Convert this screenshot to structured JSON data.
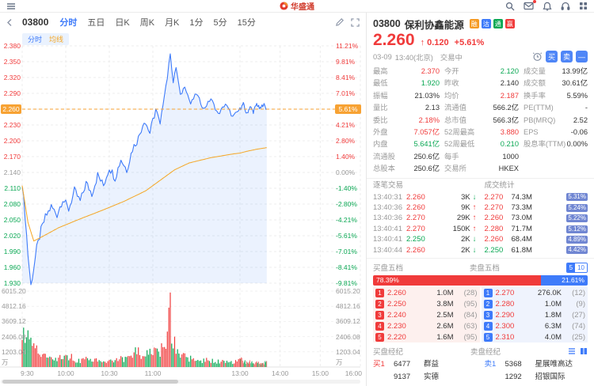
{
  "topbar": {
    "logo": "华盛通"
  },
  "chart_panel": {
    "code": "03800",
    "tabs": [
      "分时",
      "五日",
      "日K",
      "周K",
      "月K",
      "1分",
      "5分",
      "15分"
    ],
    "active_tab": 0,
    "legend": [
      "分时",
      "均线"
    ],
    "price_axis": [
      "2.380",
      "2.350",
      "2.320",
      "2.290",
      "2.260",
      "2.230",
      "2.200",
      "2.170",
      "2.140",
      "2.110",
      "2.080",
      "2.050",
      "2.020",
      "1.990",
      "1.960",
      "1.930"
    ],
    "pct_axis": [
      "11.21%",
      "9.81%",
      "8.41%",
      "7.01%",
      "5.61%",
      "4.21%",
      "2.80%",
      "1.40%",
      "0.00%",
      "-1.40%",
      "-2.80%",
      "-4.21%",
      "-5.61%",
      "-7.01%",
      "-8.41%",
      "-9.81%"
    ],
    "prev_close_index": 8,
    "current_price_chip": "2.260",
    "current_pct_chip": "5.61%",
    "volume_axis": [
      "6015.20",
      "4812.16",
      "3609.12",
      "2406.08",
      "1203.04"
    ],
    "volume_unit": "万",
    "time_axis": [
      "9:30",
      "10:00",
      "10:30",
      "11:00",
      "13:00",
      "14:00",
      "15:00",
      "16:00"
    ]
  },
  "chart_data": {
    "type": "line",
    "x_unit": "trading_minutes_from_0930",
    "x_total": 330,
    "x_end": 190,
    "ylim": [
      1.93,
      2.38
    ],
    "prev_close": 2.14,
    "current_price": 2.26,
    "current_pct": "+5.61%",
    "day_high": 2.37,
    "day_low": 1.92,
    "vol_max": 6015.2,
    "time_ticks": [
      0,
      30,
      60,
      90,
      150,
      210,
      270,
      330
    ],
    "price_keypoints": [
      [
        0,
        2.12
      ],
      [
        2,
        2.06
      ],
      [
        4,
        1.985
      ],
      [
        6,
        1.925
      ],
      [
        8,
        1.96
      ],
      [
        10,
        1.995
      ],
      [
        13,
        2.03
      ],
      [
        16,
        2.055
      ],
      [
        20,
        2.075
      ],
      [
        24,
        2.06
      ],
      [
        28,
        2.09
      ],
      [
        32,
        2.07
      ],
      [
        36,
        2.105
      ],
      [
        40,
        2.085
      ],
      [
        44,
        2.12
      ],
      [
        48,
        2.1
      ],
      [
        52,
        2.135
      ],
      [
        56,
        2.115
      ],
      [
        60,
        2.15
      ],
      [
        64,
        2.13
      ],
      [
        68,
        2.165
      ],
      [
        72,
        2.145
      ],
      [
        76,
        2.185
      ],
      [
        80,
        2.205
      ],
      [
        84,
        2.24
      ],
      [
        88,
        2.215
      ],
      [
        92,
        2.26
      ],
      [
        95,
        2.23
      ],
      [
        98,
        2.29
      ],
      [
        100,
        2.32
      ],
      [
        102,
        2.368
      ],
      [
        104,
        2.31
      ],
      [
        106,
        2.34
      ],
      [
        109,
        2.285
      ],
      [
        112,
        2.305
      ],
      [
        116,
        2.27
      ],
      [
        120,
        2.29
      ],
      [
        125,
        2.26
      ],
      [
        130,
        2.28
      ],
      [
        135,
        2.25
      ],
      [
        140,
        2.27
      ],
      [
        145,
        2.245
      ],
      [
        150,
        2.26
      ],
      [
        155,
        2.27
      ],
      [
        160,
        2.25
      ],
      [
        165,
        2.265
      ],
      [
        170,
        2.255
      ],
      [
        175,
        2.27
      ],
      [
        180,
        2.26
      ],
      [
        185,
        2.27
      ],
      [
        190,
        2.26
      ]
    ],
    "avg_keypoints": [
      [
        0,
        2.115
      ],
      [
        4,
        2.045
      ],
      [
        8,
        2.01
      ],
      [
        15,
        2.02
      ],
      [
        25,
        2.035
      ],
      [
        40,
        2.052
      ],
      [
        55,
        2.068
      ],
      [
        70,
        2.085
      ],
      [
        85,
        2.105
      ],
      [
        95,
        2.125
      ],
      [
        105,
        2.145
      ],
      [
        115,
        2.158
      ],
      [
        130,
        2.168
      ],
      [
        145,
        2.175
      ],
      [
        160,
        2.18
      ],
      [
        175,
        2.184
      ],
      [
        190,
        2.187
      ]
    ],
    "volume_envelope": [
      [
        0,
        3200
      ],
      [
        2,
        4600
      ],
      [
        4,
        3400
      ],
      [
        6,
        4800
      ],
      [
        8,
        2600
      ],
      [
        12,
        1700
      ],
      [
        16,
        1100
      ],
      [
        22,
        800
      ],
      [
        30,
        1400
      ],
      [
        38,
        700
      ],
      [
        46,
        900
      ],
      [
        54,
        600
      ],
      [
        62,
        800
      ],
      [
        70,
        1000
      ],
      [
        76,
        1400
      ],
      [
        80,
        1800
      ],
      [
        85,
        1300
      ],
      [
        90,
        1700
      ],
      [
        94,
        1400
      ],
      [
        98,
        2600
      ],
      [
        100,
        3600
      ],
      [
        102,
        6015
      ],
      [
        104,
        3200
      ],
      [
        107,
        1800
      ],
      [
        111,
        1200
      ],
      [
        116,
        900
      ],
      [
        122,
        700
      ],
      [
        128,
        800
      ],
      [
        134,
        600
      ],
      [
        140,
        700
      ],
      [
        146,
        500
      ],
      [
        150,
        900
      ],
      [
        155,
        700
      ],
      [
        160,
        500
      ],
      [
        165,
        600
      ],
      [
        170,
        400
      ],
      [
        175,
        500
      ],
      [
        180,
        400
      ],
      [
        185,
        500
      ],
      [
        190,
        600
      ]
    ]
  },
  "quote": {
    "code": "03800",
    "name": "保利协鑫能源",
    "badges": [
      {
        "t": "融",
        "c": "#f59a23"
      },
      {
        "t": "沽",
        "c": "#3e7bfa"
      },
      {
        "t": "通",
        "c": "#0ba854"
      },
      {
        "t": "赢",
        "c": "#f03b3b"
      }
    ],
    "price": "2.260",
    "arrow": "↑",
    "change": "0.120",
    "change_pct": "+5.61%",
    "date": "03-09",
    "time": "13:40(北京)",
    "status": "交易中",
    "actions": {
      "buy": "买",
      "sell": "卖",
      "collapse": "—"
    },
    "stats": [
      {
        "l": "最高",
        "v": "2.370",
        "c": "red"
      },
      {
        "l": "今开",
        "v": "2.120",
        "c": "green"
      },
      {
        "l": "成交量",
        "v": "13.99亿",
        "c": "dark"
      },
      {
        "l": "最低",
        "v": "1.920",
        "c": "green"
      },
      {
        "l": "昨收",
        "v": "2.140",
        "c": "dark"
      },
      {
        "l": "成交额",
        "v": "30.61亿",
        "c": "dark"
      },
      {
        "l": "振幅",
        "v": "21.03%",
        "c": "dark"
      },
      {
        "l": "均价",
        "v": "2.187",
        "c": "red"
      },
      {
        "l": "换手率",
        "v": "5.59%",
        "c": "dark"
      },
      {
        "l": "量比",
        "v": "2.13",
        "c": "dark"
      },
      {
        "l": "流通值",
        "v": "566.2亿",
        "c": "dark"
      },
      {
        "l": "PE(TTM)",
        "v": "-",
        "c": "dark"
      },
      {
        "l": "委比",
        "v": "2.18%",
        "c": "red"
      },
      {
        "l": "总市值",
        "v": "566.3亿",
        "c": "dark"
      },
      {
        "l": "PB(MRQ)",
        "v": "2.52",
        "c": "dark"
      },
      {
        "l": "外盘",
        "v": "7.057亿",
        "c": "red"
      },
      {
        "l": "52周最高",
        "v": "3.880",
        "c": "red"
      },
      {
        "l": "EPS",
        "v": "-0.06",
        "c": "dark"
      },
      {
        "l": "内盘",
        "v": "5.641亿",
        "c": "green"
      },
      {
        "l": "52周最低",
        "v": "0.210",
        "c": "green"
      },
      {
        "l": "股息率(TTM)",
        "v": "0.00%",
        "c": "dark"
      },
      {
        "l": "流通股",
        "v": "250.6亿",
        "c": "dark"
      },
      {
        "l": "每手",
        "v": "1000",
        "c": "dark"
      },
      {
        "l": "",
        "v": "",
        "c": "dark"
      },
      {
        "l": "总股本",
        "v": "250.6亿",
        "c": "dark"
      },
      {
        "l": "交易所",
        "v": "HKEX",
        "c": "dark"
      },
      {
        "l": "",
        "v": "",
        "c": "dark"
      }
    ],
    "ticks_title": "逐笔交易",
    "ticks": [
      {
        "time": "13:40:31",
        "price": "2.260",
        "pc": "red",
        "vol": "3K",
        "dir": "down"
      },
      {
        "time": "13:40:36",
        "price": "2.260",
        "pc": "red",
        "vol": "9K",
        "dir": "up"
      },
      {
        "time": "13:40:36",
        "price": "2.270",
        "pc": "red",
        "vol": "29K",
        "dir": "up"
      },
      {
        "time": "13:40:41",
        "price": "2.270",
        "pc": "red",
        "vol": "150K",
        "dir": "up"
      },
      {
        "time": "13:40:41",
        "price": "2.250",
        "pc": "green",
        "vol": "2K",
        "dir": "down"
      },
      {
        "time": "13:40:44",
        "price": "2.260",
        "pc": "red",
        "vol": "2K",
        "dir": "down"
      }
    ],
    "volstat_title": "成交统计",
    "volstats": [
      {
        "price": "2.270",
        "pc": "red",
        "vol": "74.3M",
        "pct": "5.31%"
      },
      {
        "price": "2.270",
        "pc": "red",
        "vol": "73.3M",
        "pct": "5.24%"
      },
      {
        "price": "2.260",
        "pc": "red",
        "vol": "73.0M",
        "pct": "5.22%"
      },
      {
        "price": "2.280",
        "pc": "red",
        "vol": "71.7M",
        "pct": "5.12%"
      },
      {
        "price": "2.260",
        "pc": "red",
        "vol": "68.4M",
        "pct": "4.89%"
      },
      {
        "price": "2.250",
        "pc": "green",
        "vol": "61.8M",
        "pct": "4.42%"
      }
    ],
    "levels": {
      "bid_title": "买盘五档",
      "ask_title": "卖盘五档",
      "toggle": [
        "5",
        "10"
      ],
      "bid_ratio": "78.39%",
      "ask_ratio": "21.61%",
      "bids": [
        {
          "rank": "1",
          "price": "2.260",
          "vol": "1.0M",
          "orders": "(28)"
        },
        {
          "rank": "2",
          "price": "2.250",
          "vol": "3.8M",
          "orders": "(95)"
        },
        {
          "rank": "3",
          "price": "2.240",
          "vol": "2.5M",
          "orders": "(84)"
        },
        {
          "rank": "4",
          "price": "2.230",
          "vol": "2.6M",
          "orders": "(63)"
        },
        {
          "rank": "5",
          "price": "2.220",
          "vol": "1.6M",
          "orders": "(95)"
        }
      ],
      "asks": [
        {
          "rank": "1",
          "price": "2.270",
          "vol": "276.0K",
          "orders": "(12)"
        },
        {
          "rank": "2",
          "price": "2.280",
          "vol": "1.0M",
          "orders": "(9)"
        },
        {
          "rank": "3",
          "price": "2.290",
          "vol": "1.8M",
          "orders": "(27)"
        },
        {
          "rank": "4",
          "price": "2.300",
          "vol": "6.3M",
          "orders": "(74)"
        },
        {
          "rank": "5",
          "price": "2.310",
          "vol": "4.0M",
          "orders": "(25)"
        }
      ]
    },
    "brokers": {
      "bid_title": "买盘经纪",
      "ask_title": "卖盘经纪",
      "bid": [
        {
          "tag": "买1",
          "id": "6477",
          "name": "群益"
        },
        {
          "tag": "",
          "id": "9137",
          "name": "实德"
        }
      ],
      "ask": [
        {
          "tag": "卖1",
          "id": "5368",
          "name": "星展唯高达"
        },
        {
          "tag": "",
          "id": "1292",
          "name": "招银国际"
        }
      ]
    }
  },
  "colors": {
    "red": "#f03b3b",
    "green": "#0ba854",
    "blue": "#3e7bfa",
    "orange": "#f7a233",
    "dark": "#333333",
    "gray": "#999999",
    "chip": "#7086d2"
  }
}
